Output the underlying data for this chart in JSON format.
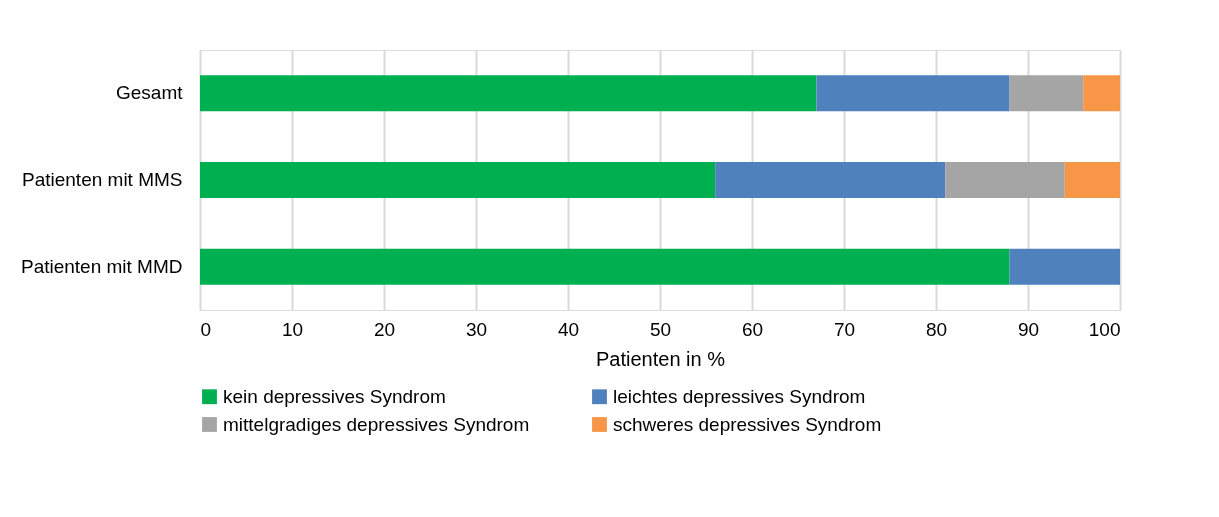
{
  "chart_data": {
    "type": "bar",
    "orientation": "horizontal",
    "stacked": true,
    "categories": [
      "Gesamt",
      "Patienten mit MMS",
      "Patienten mit MMD"
    ],
    "series": [
      {
        "name": "kein depressives Syndrom",
        "color": "#00b050",
        "values": [
          67,
          56,
          88
        ]
      },
      {
        "name": "leichtes depressives Syndrom",
        "color": "#4f81bd",
        "values": [
          21,
          25,
          12
        ]
      },
      {
        "name": "mittelgradiges depressives Syndrom",
        "color": "#a5a5a5",
        "values": [
          8,
          13,
          0
        ]
      },
      {
        "name": "schweres depressives Syndrom",
        "color": "#f79646",
        "values": [
          4,
          6,
          0
        ]
      }
    ],
    "xlabel": "Patienten in %",
    "xlim": [
      0,
      100
    ],
    "xticks": [
      0,
      10,
      20,
      30,
      40,
      50,
      60,
      70,
      80,
      90,
      100
    ],
    "grid": "x",
    "legend": "bottom"
  }
}
